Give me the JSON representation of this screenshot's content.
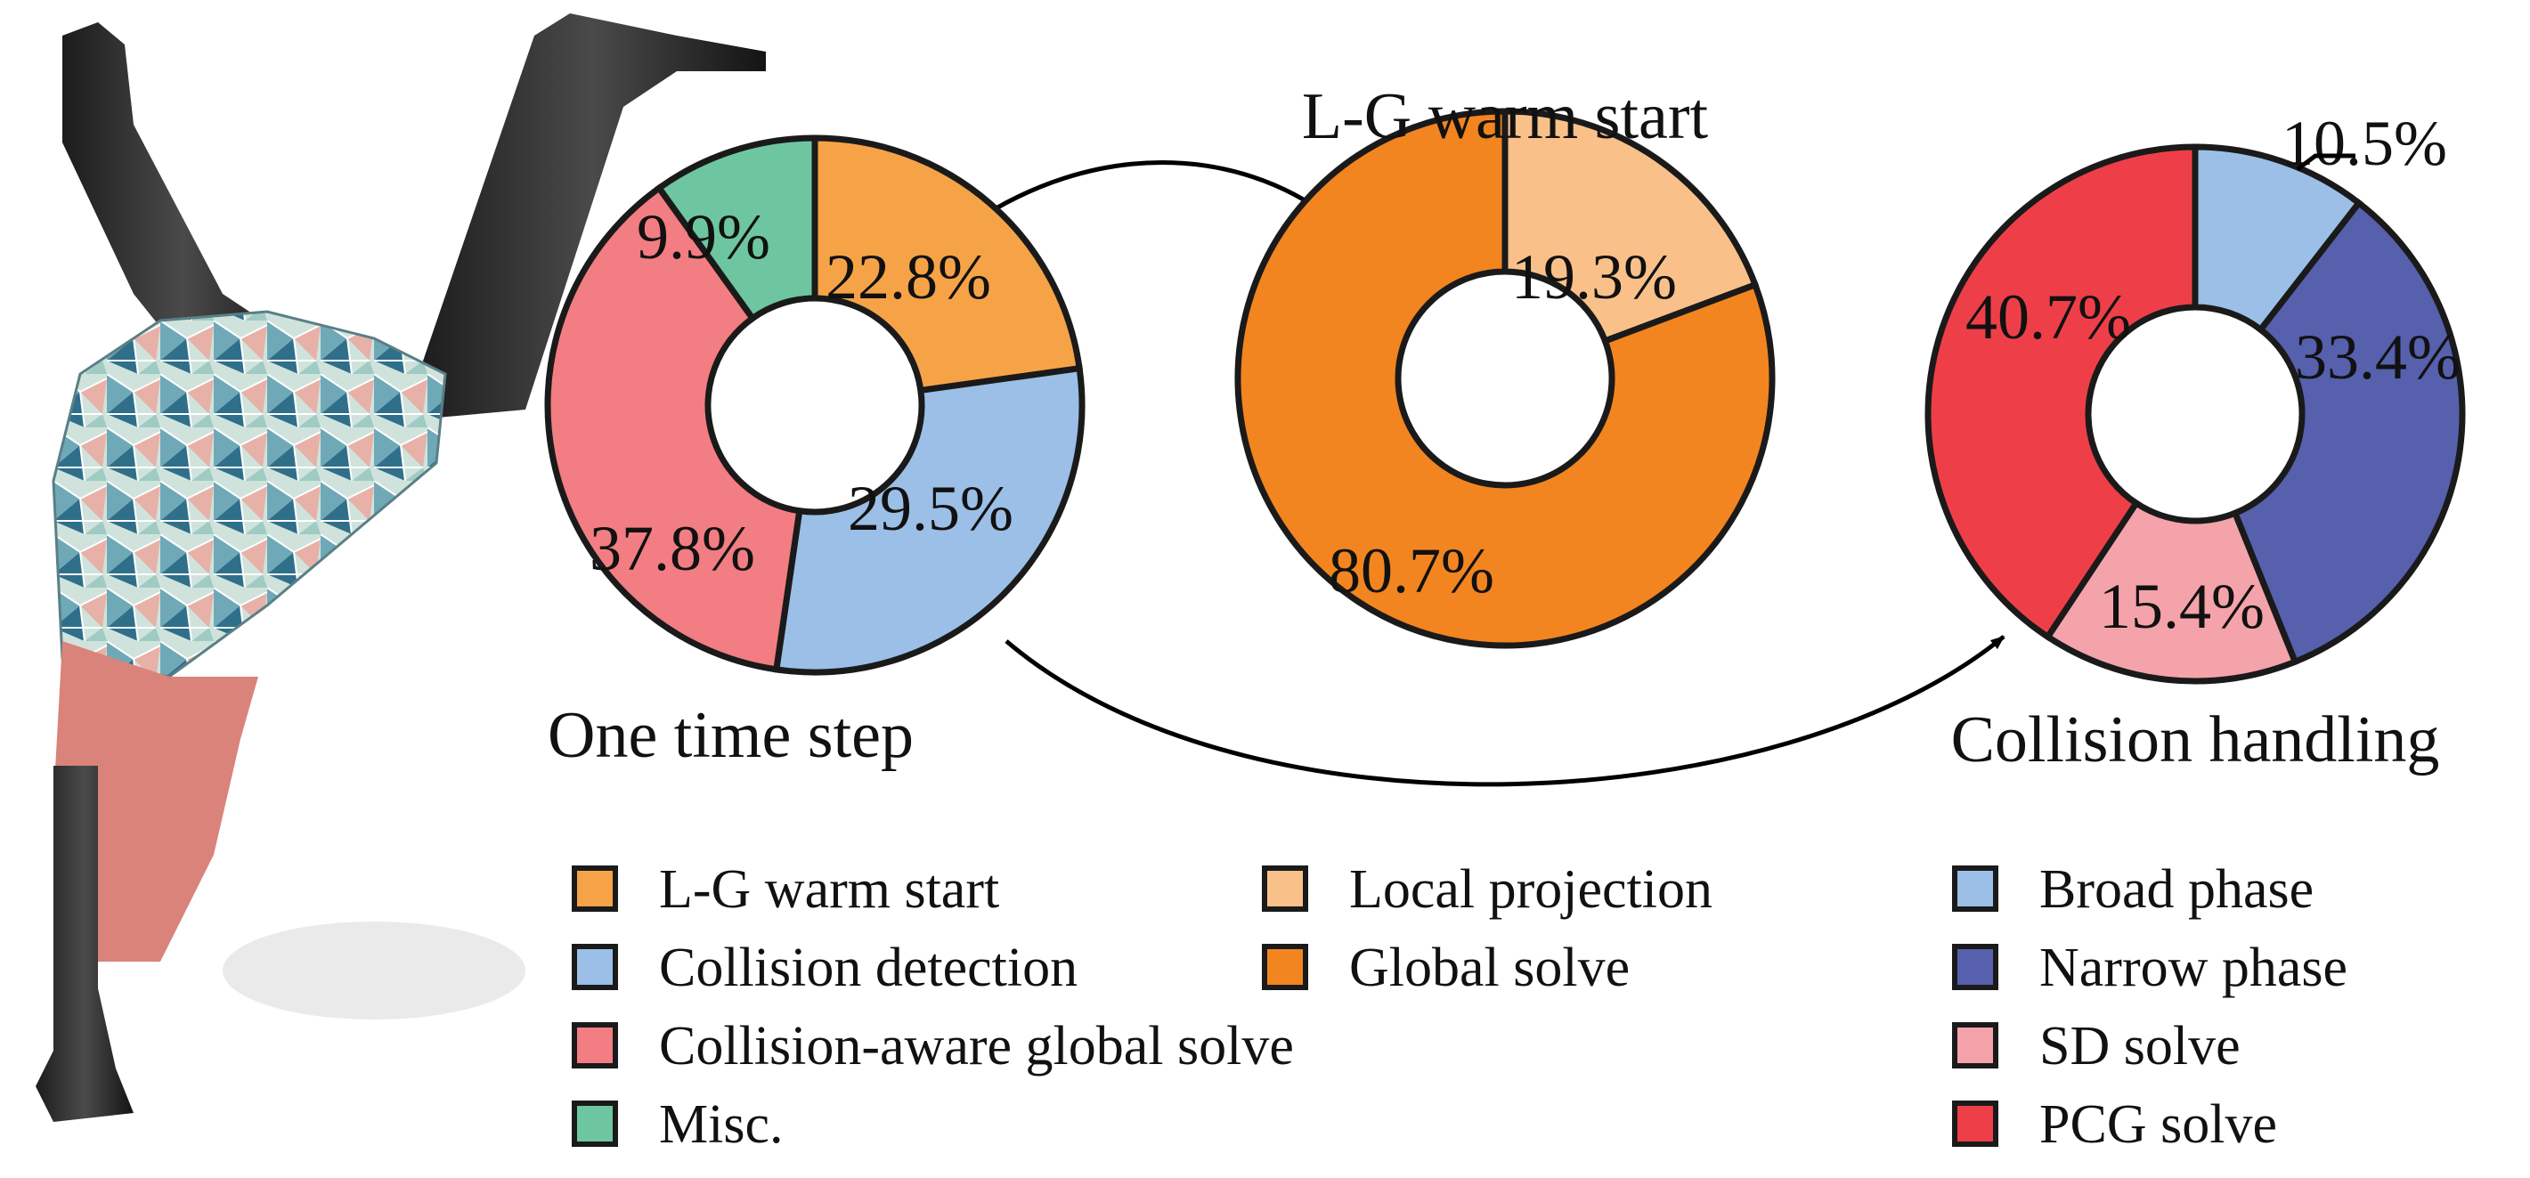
{
  "figure": {
    "illustration": "figure-illustration",
    "stroke_color": "#1a1a1a"
  },
  "chart_data": [
    {
      "type": "pie",
      "variant": "donut",
      "title": "One time step",
      "title_position": "bottom",
      "categories": [
        "L-G warm start",
        "Collision detection",
        "Collision-aware global solve",
        "Misc."
      ],
      "values": [
        22.8,
        29.5,
        37.8,
        9.9
      ],
      "labels": [
        "22.8%",
        "29.5%",
        "37.8%",
        "9.9%"
      ],
      "colors": [
        "#f6a347",
        "#9bbfe6",
        "#f27d82",
        "#6dc6a0"
      ]
    },
    {
      "type": "pie",
      "variant": "donut",
      "title": "L-G warm start",
      "title_position": "top",
      "categories": [
        "Local projection",
        "Global solve"
      ],
      "values": [
        19.3,
        80.7
      ],
      "labels": [
        "19.3%",
        "80.7%"
      ],
      "colors": [
        "#f9c189",
        "#f2851f"
      ]
    },
    {
      "type": "pie",
      "variant": "donut",
      "title": "Collision handling",
      "title_position": "bottom",
      "categories": [
        "Broad phase",
        "Narrow phase",
        "SD solve",
        "PCG solve"
      ],
      "values": [
        10.5,
        33.4,
        15.4,
        40.7
      ],
      "labels": [
        "10.5%",
        "33.4%",
        "15.4%",
        "40.7%"
      ],
      "colors": [
        "#9bbfe6",
        "#5660ad",
        "#f4a3aa",
        "#ee3f48"
      ]
    }
  ],
  "legends": [
    {
      "items": [
        {
          "label": "L-G warm start",
          "color": "#f6a347"
        },
        {
          "label": "Collision detection",
          "color": "#9bbfe6"
        },
        {
          "label": "Collision-aware global solve",
          "color": "#f27d82"
        },
        {
          "label": "Misc.",
          "color": "#6dc6a0"
        }
      ]
    },
    {
      "items": [
        {
          "label": "Local projection",
          "color": "#f9c189"
        },
        {
          "label": "Global solve",
          "color": "#f2851f"
        }
      ]
    },
    {
      "items": [
        {
          "label": "Broad phase",
          "color": "#9bbfe6"
        },
        {
          "label": "Narrow phase",
          "color": "#5660ad"
        },
        {
          "label": "SD solve",
          "color": "#f4a3aa"
        },
        {
          "label": "PCG solve",
          "color": "#ee3f48"
        }
      ]
    }
  ]
}
